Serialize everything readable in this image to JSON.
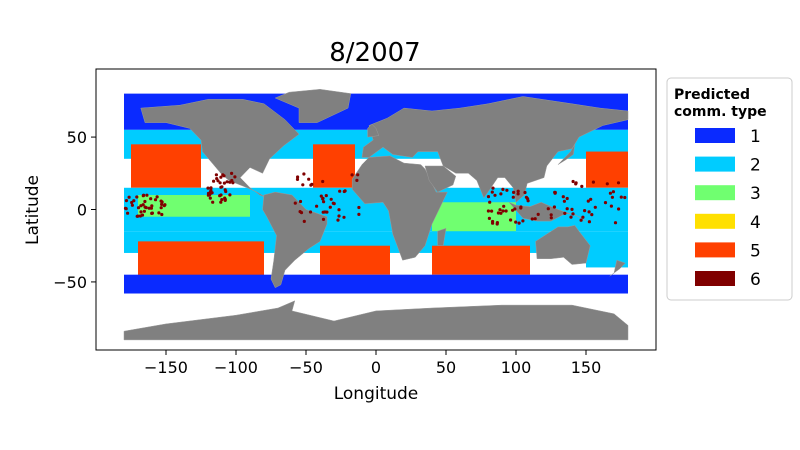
{
  "chart_data": {
    "type": "map",
    "title": "8/2007",
    "xlabel": "Longitude",
    "ylabel": "Latitude",
    "xlim": [
      -200,
      200
    ],
    "ylim": [
      -97,
      97
    ],
    "xticks": [
      -150,
      -100,
      -50,
      0,
      50,
      100,
      150
    ],
    "xtick_labels": [
      "−150",
      "−100",
      "−50",
      "0",
      "50",
      "100",
      "150"
    ],
    "yticks": [
      -50,
      0,
      50
    ],
    "ytick_labels": [
      "−50",
      "0",
      "50"
    ],
    "grid": false,
    "legend": {
      "title_lines": [
        "Predicted",
        "comm. type"
      ],
      "placement": "right-outside",
      "entries": [
        {
          "label": "1",
          "color": "#0a2aff"
        },
        {
          "label": "2",
          "color": "#00ccff"
        },
        {
          "label": "3",
          "color": "#70ff70"
        },
        {
          "label": "4",
          "color": "#ffe000"
        },
        {
          "label": "5",
          "color": "#ff4000"
        },
        {
          "label": "6",
          "color": "#800000"
        }
      ]
    },
    "land_color": "#808080",
    "bands": [
      {
        "type": "1",
        "lat": [
          55,
          80
        ],
        "lon": [
          -180,
          180
        ]
      },
      {
        "type": "2",
        "lat": [
          35,
          55
        ],
        "lon": [
          -180,
          180
        ]
      },
      {
        "type": "5",
        "lat": [
          15,
          45
        ],
        "lon": [
          -175,
          -125
        ]
      },
      {
        "type": "5",
        "lat": [
          15,
          45
        ],
        "lon": [
          -45,
          -15
        ]
      },
      {
        "type": "5",
        "lat": [
          15,
          40
        ],
        "lon": [
          150,
          180
        ]
      },
      {
        "type": "2",
        "lat": [
          -15,
          15
        ],
        "lon": [
          -180,
          180
        ]
      },
      {
        "type": "3",
        "lat": [
          -5,
          10
        ],
        "lon": [
          -170,
          -90
        ]
      },
      {
        "type": "3",
        "lat": [
          -20,
          5
        ],
        "lon": [
          40,
          100
        ]
      },
      {
        "type": "2",
        "lat": [
          -30,
          -15
        ],
        "lon": [
          -180,
          180
        ]
      },
      {
        "type": "5",
        "lat": [
          -50,
          -22
        ],
        "lon": [
          -170,
          -80
        ]
      },
      {
        "type": "5",
        "lat": [
          -45,
          -25
        ],
        "lon": [
          -40,
          10
        ]
      },
      {
        "type": "5",
        "lat": [
          -45,
          -25
        ],
        "lon": [
          40,
          110
        ]
      },
      {
        "type": "2",
        "lat": [
          -40,
          -25
        ],
        "lon": [
          150,
          180
        ]
      },
      {
        "type": "1",
        "lat": [
          -58,
          -45
        ],
        "lon": [
          -180,
          180
        ]
      }
    ],
    "type6_clusters": [
      {
        "lat": [
          -10,
          25
        ],
        "lon": [
          -60,
          -10
        ]
      },
      {
        "lat": [
          -10,
          15
        ],
        "lon": [
          80,
          120
        ]
      },
      {
        "lat": [
          -5,
          10
        ],
        "lon": [
          -180,
          -150
        ]
      },
      {
        "lat": [
          -10,
          20
        ],
        "lon": [
          120,
          180
        ]
      },
      {
        "lat": [
          5,
          25
        ],
        "lon": [
          -120,
          -100
        ]
      }
    ]
  }
}
